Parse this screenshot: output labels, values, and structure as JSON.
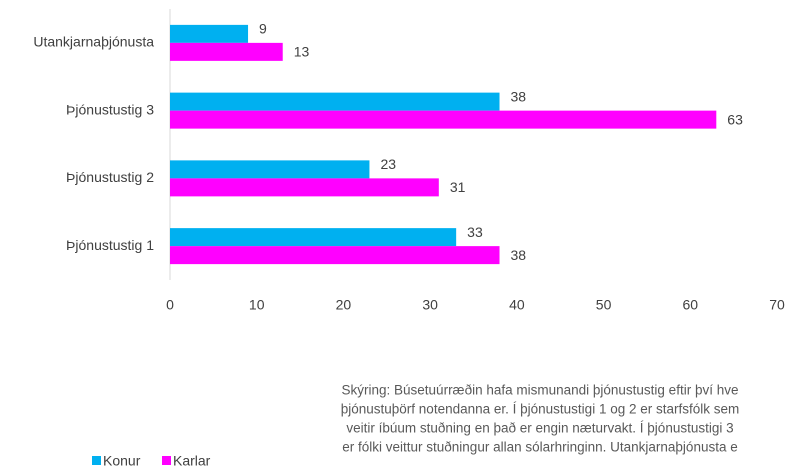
{
  "chart_data": {
    "type": "hbar",
    "categories": [
      "Utankjarnaþjónusta",
      "Þjónustustig 3",
      "Þjónustustig 2",
      "Þjónustustig 1"
    ],
    "series": [
      {
        "name": "Konur",
        "color": "#00b0f0",
        "values": [
          9,
          38,
          23,
          33
        ]
      },
      {
        "name": "Karlar",
        "color": "#ff00ff",
        "values": [
          13,
          63,
          31,
          38
        ]
      }
    ],
    "xlim": [
      0,
      70
    ],
    "xticks": [
      0,
      10,
      20,
      30,
      40,
      50,
      60,
      70
    ],
    "legend": "bottom-left",
    "note": [
      "Skýring: Búsetuúrræðin hafa mismunandi þjónustustig eftir því hve",
      "þjónustuþörf notendanna er. Í þjónustustigi 1 og 2 er starfsfólk sem",
      "veitir íbúum stuðning en það er engin næturvakt. Í þjónustustigi 3",
      "er fólki veittur stuðningur allan sólarhringinn. Utankjarnaþjónusta e"
    ]
  }
}
